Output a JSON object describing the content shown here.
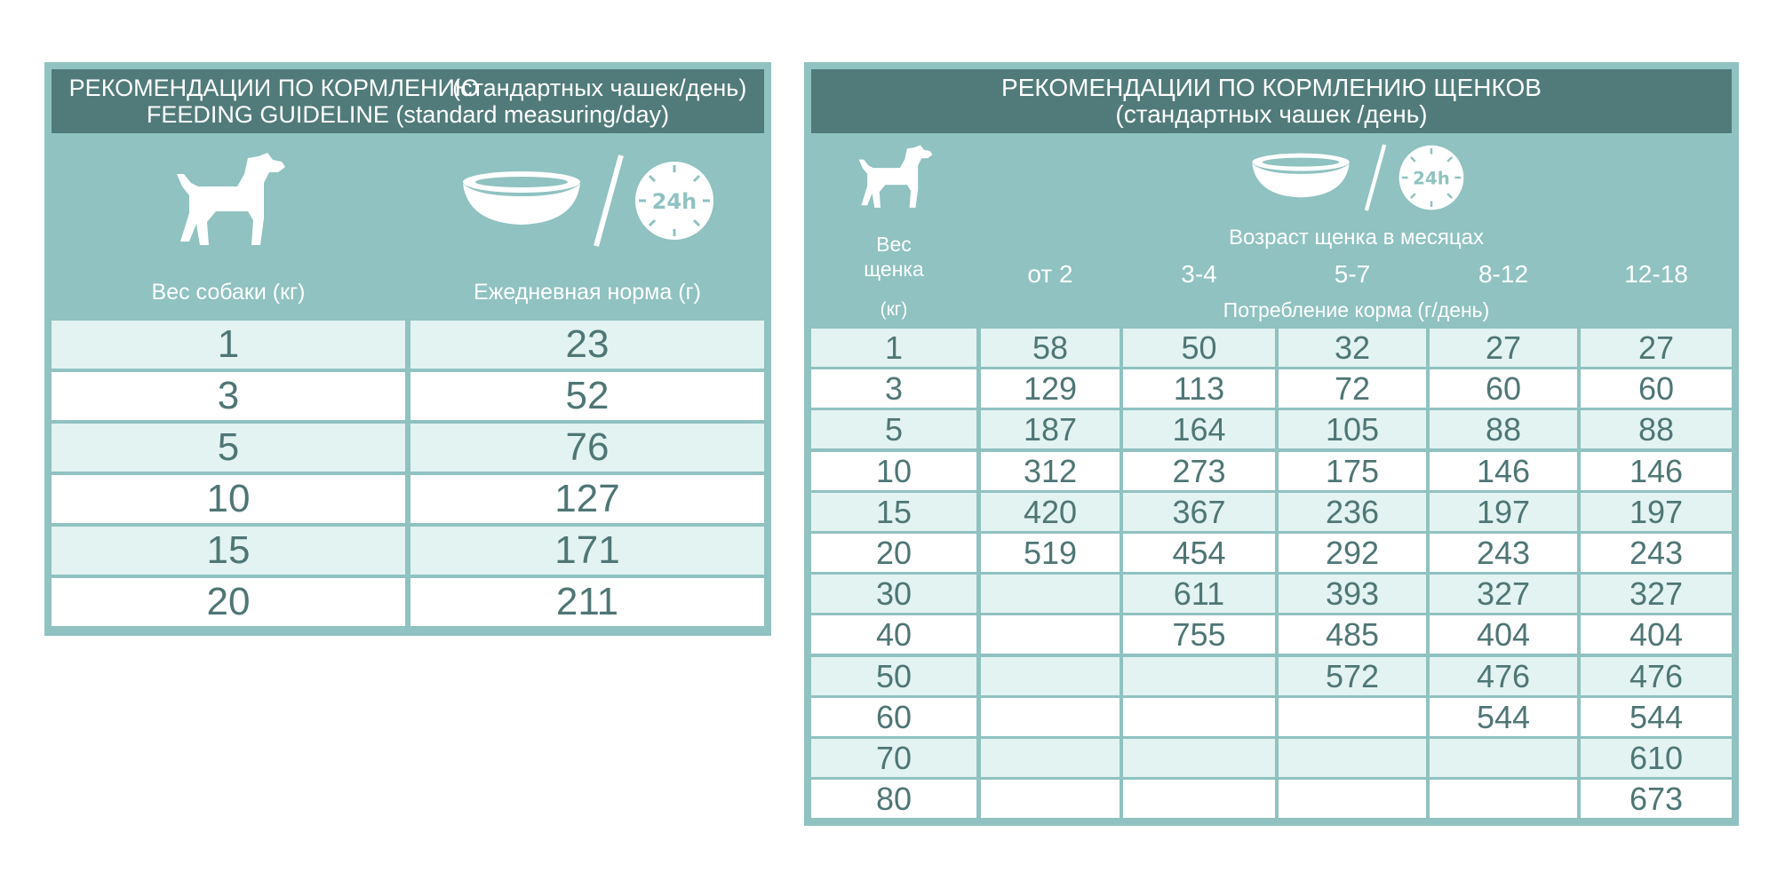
{
  "left_table": {
    "title_ru_a": "РЕКОМЕНДАЦИИ ПО КОРМЛЕНИЮ",
    "title_ru_b": "(стандартных чашек/день)",
    "title_en": "FEEDING GUIDELINE (standard measuring/day)",
    "col_weight": "Вес собаки (кг)",
    "col_daily": "Ежедневная норма (г)",
    "rows": [
      {
        "weight": "1",
        "amount": "23"
      },
      {
        "weight": "3",
        "amount": "52"
      },
      {
        "weight": "5",
        "amount": "76"
      },
      {
        "weight": "10",
        "amount": "127"
      },
      {
        "weight": "15",
        "amount": "171"
      },
      {
        "weight": "20",
        "amount": "211"
      }
    ]
  },
  "right_table": {
    "title_line1": "РЕКОМЕНДАЦИИ ПО КОРМЛЕНИЮ ЩЕНКОВ",
    "title_line2": "(стандартных чашек /день)",
    "weight_label": "Вес\nщенка",
    "weight_unit": "(кг)",
    "age_header": "Возраст щенка в месяцах",
    "consumption_header": "Потребление корма (г/день)",
    "age_columns": [
      "от 2",
      "3-4",
      "5-7",
      "8-12",
      "12-18"
    ],
    "rows": [
      {
        "weight": "1",
        "values": [
          "58",
          "50",
          "32",
          "27",
          "27"
        ]
      },
      {
        "weight": "3",
        "values": [
          "129",
          "113",
          "72",
          "60",
          "60"
        ]
      },
      {
        "weight": "5",
        "values": [
          "187",
          "164",
          "105",
          "88",
          "88"
        ]
      },
      {
        "weight": "10",
        "values": [
          "312",
          "273",
          "175",
          "146",
          "146"
        ]
      },
      {
        "weight": "15",
        "values": [
          "420",
          "367",
          "236",
          "197",
          "197"
        ]
      },
      {
        "weight": "20",
        "values": [
          "519",
          "454",
          "292",
          "243",
          "243"
        ]
      },
      {
        "weight": "30",
        "values": [
          "",
          "611",
          "393",
          "327",
          "327"
        ]
      },
      {
        "weight": "40",
        "values": [
          "",
          "755",
          "485",
          "404",
          "404"
        ]
      },
      {
        "weight": "50",
        "values": [
          "",
          "",
          "572",
          "476",
          "476"
        ]
      },
      {
        "weight": "60",
        "values": [
          "",
          "",
          "",
          "544",
          "544"
        ]
      },
      {
        "weight": "70",
        "values": [
          "",
          "",
          "",
          "",
          "610"
        ]
      },
      {
        "weight": "80",
        "values": [
          "",
          "",
          "",
          "",
          "673"
        ]
      }
    ]
  },
  "icons": {
    "dog": "dog-silhouette-icon",
    "bowl": "food-bowl-icon",
    "clock": "clock-24h-icon",
    "clock_label": "24h"
  },
  "colors": {
    "title_bg": "#507b7a",
    "panel_bg": "#8fc2c1",
    "row_light": "#e2f3f1",
    "row_white": "#ffffff",
    "number_text": "#4e7675"
  }
}
